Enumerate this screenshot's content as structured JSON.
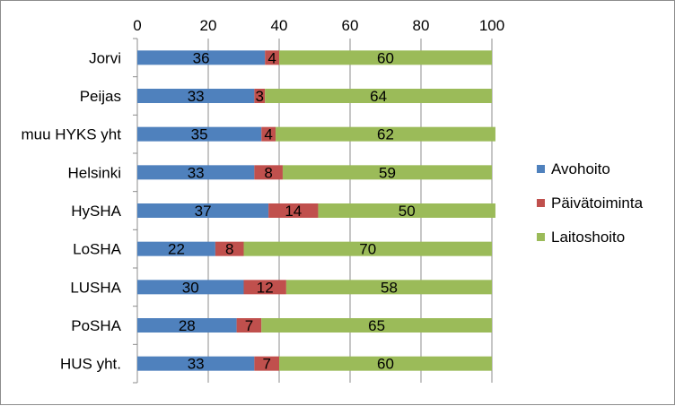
{
  "chart_data": {
    "type": "bar",
    "orientation": "horizontal",
    "stacked": true,
    "categories": [
      "Jorvi",
      "Peijas",
      "muu HYKS yht",
      "Helsinki",
      "HySHA",
      "LoSHA",
      "LUSHA",
      "PoSHA",
      "HUS yht."
    ],
    "series": [
      {
        "name": "Avohoito",
        "color": "#4f81bd",
        "values": [
          36,
          33,
          35,
          33,
          37,
          22,
          30,
          28,
          33
        ]
      },
      {
        "name": "Päivätoiminta",
        "color": "#c0504d",
        "values": [
          4,
          3,
          4,
          8,
          14,
          8,
          12,
          7,
          7
        ]
      },
      {
        "name": "Laitoshoito",
        "color": "#9bbb59",
        "values": [
          60,
          64,
          62,
          59,
          50,
          70,
          58,
          65,
          60
        ]
      }
    ],
    "xlim": [
      0,
      100
    ],
    "xticks": [
      0,
      20,
      40,
      60,
      80,
      100
    ],
    "x_axis_position": "top",
    "grid": "vertical",
    "legend": "right",
    "title": "",
    "xlabel": "",
    "ylabel": ""
  }
}
